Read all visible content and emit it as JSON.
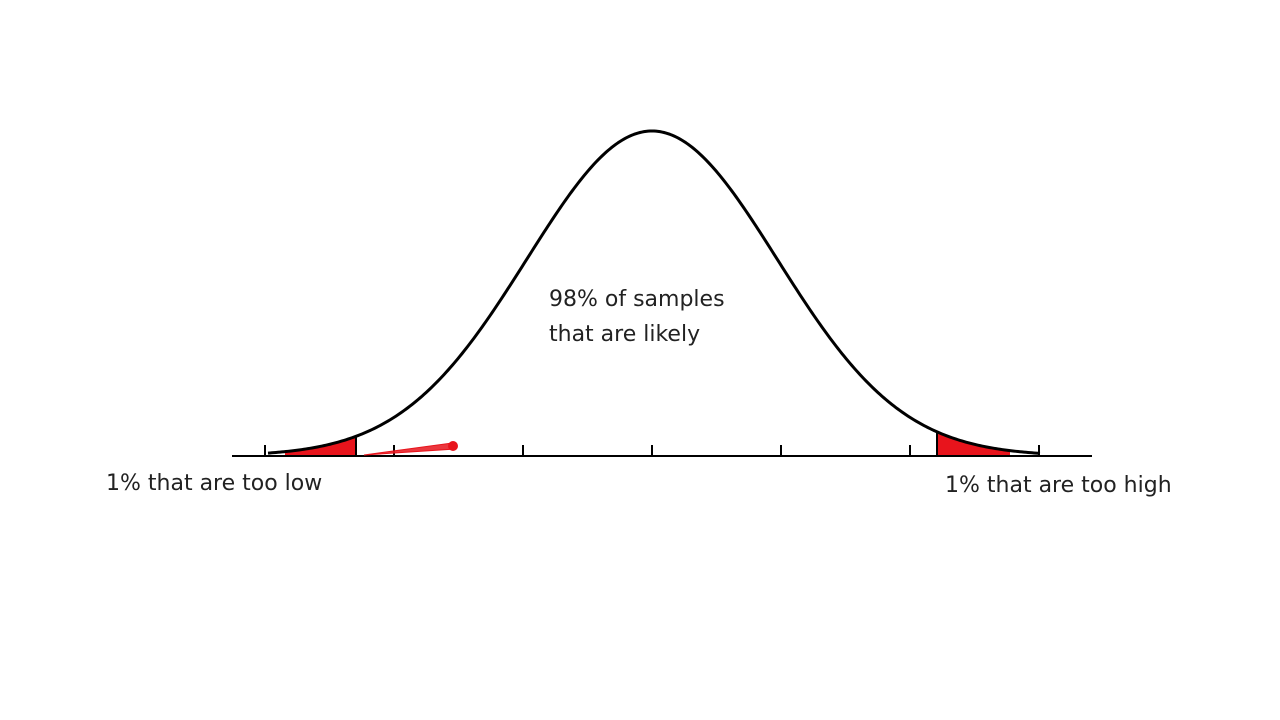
{
  "annotations": {
    "center_line1": "98% of samples",
    "center_line2": "that are likely",
    "low_tail": "1% that are too low",
    "high_tail": "1% that are too high"
  },
  "distribution": {
    "type": "normal",
    "central_share_percent": 98,
    "lower_tail_percent": 1,
    "upper_tail_percent": 1,
    "tick_count": 7
  },
  "colors": {
    "curve": "#000000",
    "axis": "#000000",
    "tail_fill": "#e8141c",
    "pen_stroke": "#e8141c",
    "text": "#222222",
    "background": "#ffffff"
  }
}
